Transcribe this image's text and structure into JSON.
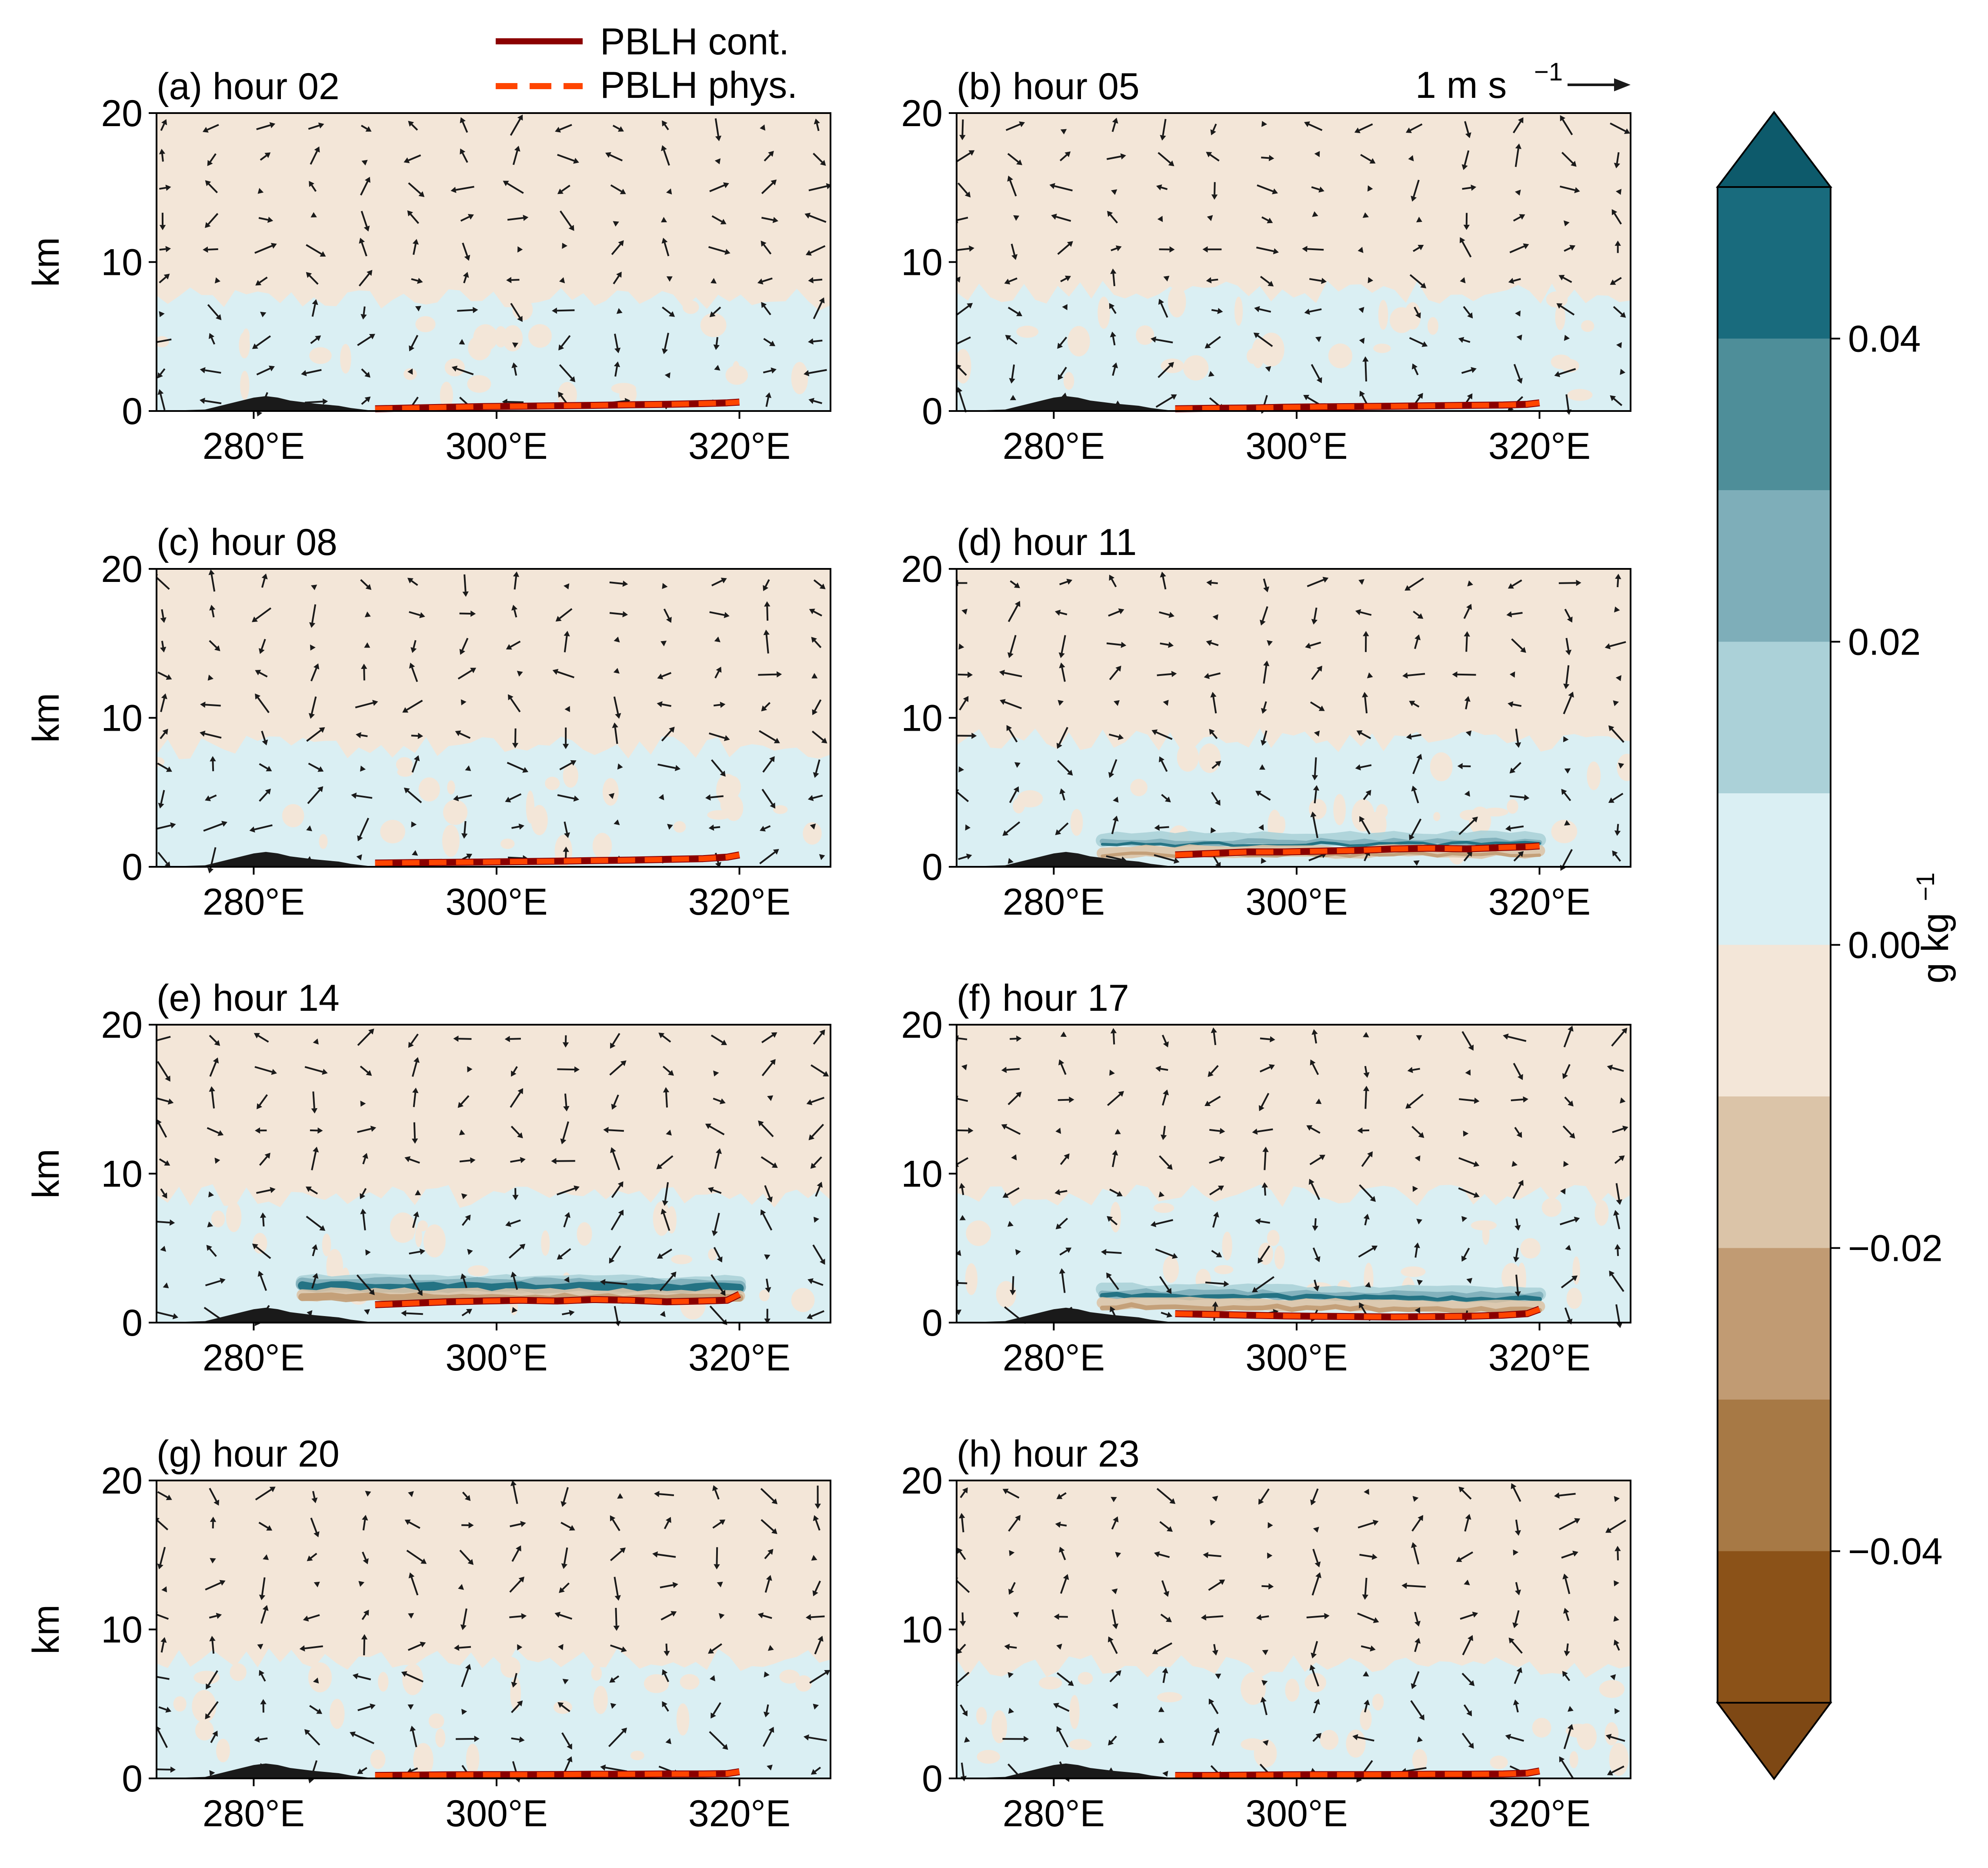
{
  "chart_data": {
    "type": "multi-panel contour cross-section with wind vectors",
    "legend": {
      "entries": [
        {
          "label": "PBLH cont.",
          "color": "#8b0000",
          "style": "solid"
        },
        {
          "label": "PBLH phys.",
          "color": "#ff4500",
          "style": "dashed"
        }
      ]
    },
    "quiver_key": {
      "label": "1 m s",
      "exponent": "−1"
    },
    "x_ticks": [
      "280°E",
      "300°E",
      "320°E"
    ],
    "x_tick_values": [
      280,
      300,
      320
    ],
    "xlim": [
      272,
      327.5
    ],
    "ylabel": "km",
    "y_ticks": [
      "0",
      "10",
      "20"
    ],
    "ylim": [
      0,
      20
    ],
    "panels": [
      {
        "title": "(a) hour 02",
        "pbl": [
          0.15,
          0.2,
          0.25,
          0.3,
          0.32,
          0.35,
          0.38,
          0.42,
          0.45,
          0.5,
          0.55,
          0.6
        ],
        "front_height": 0,
        "front_strength": 0,
        "moist_top": 7.5
      },
      {
        "title": "(b) hour 05",
        "pbl": [
          0.15,
          0.18,
          0.2,
          0.25,
          0.28,
          0.3,
          0.32,
          0.35,
          0.38,
          0.4,
          0.45,
          0.55
        ],
        "front_height": 0,
        "front_strength": 0,
        "moist_top": 8.0
      },
      {
        "title": "(c) hour 08",
        "pbl": [
          0.25,
          0.28,
          0.3,
          0.32,
          0.35,
          0.38,
          0.42,
          0.45,
          0.5,
          0.55,
          0.65,
          0.8
        ],
        "front_height": 0,
        "front_strength": 0,
        "moist_top": 8.0
      },
      {
        "title": "(d) hour 11",
        "pbl": [
          0.8,
          0.9,
          1.0,
          1.0,
          1.05,
          1.1,
          1.2,
          1.25,
          1.2,
          1.3,
          1.35,
          1.4
        ],
        "front_height": 1.3,
        "front_strength": 0.25,
        "moist_top": 8.5
      },
      {
        "title": "(e) hour 14",
        "pbl": [
          1.2,
          1.3,
          1.4,
          1.45,
          1.5,
          1.45,
          1.55,
          1.5,
          1.4,
          1.45,
          1.5,
          1.9
        ],
        "front_height": 2.2,
        "front_strength": 1.0,
        "moist_top": 8.5
      },
      {
        "title": "(f) hour 17",
        "pbl": [
          0.6,
          0.55,
          0.5,
          0.45,
          0.42,
          0.4,
          0.38,
          0.4,
          0.42,
          0.5,
          0.6,
          0.9
        ],
        "front_height": 1.6,
        "front_strength": 0.5,
        "moist_top": 8.5
      },
      {
        "title": "(g) hour 20",
        "pbl": [
          0.2,
          0.22,
          0.24,
          0.25,
          0.25,
          0.26,
          0.28,
          0.28,
          0.3,
          0.3,
          0.32,
          0.45
        ],
        "front_height": 0,
        "front_strength": 0,
        "moist_top": 8.0
      },
      {
        "title": "(h) hour 23",
        "pbl": [
          0.2,
          0.2,
          0.22,
          0.24,
          0.25,
          0.25,
          0.26,
          0.28,
          0.28,
          0.3,
          0.35,
          0.5
        ],
        "front_height": 0,
        "front_strength": 0,
        "moist_top": 7.5
      }
    ],
    "pbl_x": [
      290,
      293,
      296,
      299,
      302,
      305,
      308,
      311,
      314,
      317,
      319,
      320
    ],
    "terrain": {
      "x": [
        272,
        276,
        278,
        280,
        281,
        282,
        283,
        285,
        287,
        288,
        290
      ],
      "height": [
        0,
        0.1,
        0.5,
        0.9,
        1.0,
        0.9,
        0.7,
        0.5,
        0.35,
        0.2,
        0
      ]
    },
    "colorbar": {
      "label": "g kg",
      "label_exponent": "−1",
      "ticks": [
        "−0.04",
        "−0.02",
        "0.00",
        "0.02",
        "0.04"
      ],
      "tick_values": [
        -0.04,
        -0.02,
        0.0,
        0.02,
        0.04
      ],
      "levels": [
        -0.05,
        -0.04,
        -0.03,
        -0.02,
        -0.01,
        0.0,
        0.01,
        0.02,
        0.03,
        0.04,
        0.05
      ],
      "colors": [
        "#8b5218",
        "#a77945",
        "#c19b73",
        "#dbc4a8",
        "#f3e6d8",
        "#daeff3",
        "#abd1d8",
        "#7eaeb9",
        "#4e8e99",
        "#196b7d"
      ],
      "extend_low_color": "#7e4814",
      "extend_high_color": "#0d5a6b"
    },
    "colors": {
      "background": "#f3e6d8",
      "moist": "#daeff3",
      "terrain": "#1a1a1a",
      "arrows": "#1a1a1a",
      "pbl_cont": "#8b0000",
      "pbl_phys": "#ff4500"
    }
  }
}
